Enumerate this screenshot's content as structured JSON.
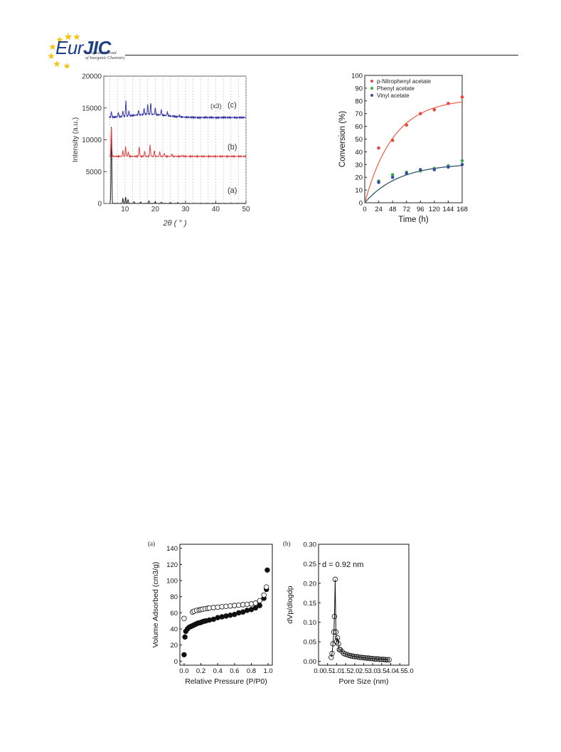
{
  "header": {
    "logo_text_eur": "Eur",
    "logo_text_jic": "JIC",
    "logo_sub1": "European Journal",
    "logo_sub2": "of Inorganic Chemistry"
  },
  "chart_data": [
    {
      "type": "line",
      "panel": "xrd",
      "xlabel": "2θ ( ° )",
      "ylabel": "Intensity (a.u.)",
      "xlim": [
        3,
        50
      ],
      "ylim": [
        0,
        20000
      ],
      "xticks": [
        "10",
        "20",
        "30",
        "40",
        "50"
      ],
      "yticks": [
        "0",
        "5000",
        "10000",
        "15000",
        "20000"
      ],
      "series": [
        {
          "name": "(a)",
          "offset": 0,
          "peaks": [
            [
              5.5,
              12000
            ],
            [
              9.3,
              800
            ],
            [
              10.2,
              1000
            ],
            [
              11.0,
              600
            ],
            [
              13.0,
              300
            ],
            [
              15.2,
              250
            ],
            [
              17.9,
              400
            ],
            [
              20.0,
              250
            ],
            [
              22.0,
              200
            ],
            [
              25.0,
              150
            ],
            [
              27.5,
              120
            ]
          ],
          "color": "#222222"
        },
        {
          "name": "(b)",
          "offset": 7400,
          "peaks": [
            [
              5.5,
              4500
            ],
            [
              9.3,
              900
            ],
            [
              10.2,
              1500
            ],
            [
              11.1,
              700
            ],
            [
              14.7,
              1500
            ],
            [
              16.5,
              800
            ],
            [
              18.3,
              1800
            ],
            [
              19.7,
              900
            ],
            [
              21.5,
              700
            ],
            [
              23.0,
              500
            ],
            [
              25.5,
              300
            ],
            [
              29.0,
              200
            ]
          ],
          "color": "#e04040"
        },
        {
          "name": "(c)",
          "annotation": "(x3)",
          "offset": 13500,
          "peaks": [
            [
              5.5,
              900
            ],
            [
              7.8,
              700
            ],
            [
              9.3,
              900
            ],
            [
              10.3,
              2300
            ],
            [
              11.3,
              800
            ],
            [
              14.5,
              700
            ],
            [
              16.3,
              1000
            ],
            [
              17.5,
              1600
            ],
            [
              18.5,
              1800
            ],
            [
              20.0,
              1100
            ],
            [
              22.0,
              800
            ],
            [
              24.0,
              600
            ],
            [
              28.0,
              300
            ]
          ],
          "color": "#3a3aa8"
        }
      ],
      "grid": "vertical dashed"
    },
    {
      "type": "scatter",
      "panel": "conversion",
      "xlabel": "Time (h)",
      "ylabel": "Conversion (%)",
      "xlim": [
        0,
        168
      ],
      "ylim": [
        0,
        100
      ],
      "xticks": [
        "0",
        "24",
        "48",
        "72",
        "96",
        "120",
        "144",
        "168"
      ],
      "yticks": [
        "0",
        "10",
        "20",
        "30",
        "40",
        "50",
        "60",
        "70",
        "80",
        "90",
        "100"
      ],
      "legend": "top-left",
      "series": [
        {
          "name": "p-Nitrophenyl acetate",
          "color": "#e8473c",
          "x": [
            0,
            24,
            48,
            72,
            96,
            120,
            144,
            168
          ],
          "y": [
            0,
            43,
            49,
            61,
            70,
            73,
            78,
            83
          ],
          "fit_max": 82,
          "fit_k": 0.02
        },
        {
          "name": "Phenyl acetate",
          "color": "#3aa84a",
          "x": [
            0,
            24,
            48,
            72,
            96,
            120,
            144,
            168
          ],
          "y": [
            0,
            17,
            22,
            24,
            25,
            27,
            29,
            33
          ],
          "fit_max": 31,
          "fit_k": 0.017
        },
        {
          "name": "Vinyl acetate",
          "color": "#3a4aa8",
          "x": [
            0,
            24,
            48,
            72,
            96,
            120,
            144,
            168
          ],
          "y": [
            0,
            16,
            20,
            23,
            26,
            26,
            28,
            30
          ],
          "fit_max": 31,
          "fit_k": 0.017
        }
      ],
      "fit_color_1": "#ef6a4c",
      "fit_color_2": "#2c5a68"
    },
    {
      "type": "scatter",
      "panel": "isotherm",
      "panel_label": "(a)",
      "xlabel": "Relative Pressure (P/P0)",
      "ylabel": "Volume Adsorbed (cm3/g)",
      "xlim": [
        -0.05,
        1.05
      ],
      "ylim": [
        -5,
        145
      ],
      "xticks": [
        "0.0",
        "0.2",
        "0.4",
        "0.6",
        "0.8",
        "1.0"
      ],
      "yticks": [
        "0",
        "20",
        "40",
        "60",
        "80",
        "100",
        "120",
        "140"
      ],
      "series": [
        {
          "name": "adsorption",
          "filled": true,
          "x": [
            0.0,
            0.01,
            0.02,
            0.04,
            0.06,
            0.08,
            0.1,
            0.12,
            0.14,
            0.16,
            0.18,
            0.2,
            0.22,
            0.24,
            0.26,
            0.3,
            0.35,
            0.4,
            0.45,
            0.5,
            0.55,
            0.6,
            0.65,
            0.7,
            0.75,
            0.8,
            0.85,
            0.9,
            0.95,
            0.98,
            0.99
          ],
          "y": [
            8,
            30,
            37,
            40,
            42,
            43,
            44,
            45,
            46,
            47,
            47.5,
            48,
            49,
            49.5,
            50,
            51,
            52,
            54,
            55,
            56,
            57,
            58,
            60,
            61,
            63,
            64,
            66,
            69,
            78,
            89,
            113
          ]
        },
        {
          "name": "desorption",
          "filled": false,
          "x": [
            0.0,
            0.1,
            0.12,
            0.15,
            0.18,
            0.2,
            0.22,
            0.25,
            0.28,
            0.3,
            0.35,
            0.4,
            0.45,
            0.5,
            0.55,
            0.6,
            0.65,
            0.7,
            0.75,
            0.8,
            0.85,
            0.9,
            0.95,
            0.98
          ],
          "y": [
            53,
            61,
            62,
            63,
            63.5,
            64,
            64.5,
            65,
            65.5,
            66,
            66.5,
            67,
            67.5,
            68,
            68.5,
            69,
            69.5,
            70,
            70.5,
            71,
            72,
            75,
            82,
            92
          ]
        }
      ]
    },
    {
      "type": "line",
      "panel": "psd",
      "panel_label": "(b)",
      "annotation": "d = 0.92 nm",
      "xlabel": "Pore Size (nm)",
      "ylabel": "dVp/dlogdp",
      "xlim": [
        0,
        5.0
      ],
      "ylim": [
        -0.01,
        0.3
      ],
      "xticks": [
        "0.0",
        "0.5",
        "1.0",
        "1.5",
        "2.0",
        "2.5",
        "3.0",
        "3.5",
        "4.0",
        "4.5",
        "5.0"
      ],
      "yticks": [
        "0.00",
        "0.05",
        "0.10",
        "0.15",
        "0.20",
        "0.25",
        "0.30"
      ],
      "x": [
        0.7,
        0.75,
        0.8,
        0.85,
        0.88,
        0.92,
        0.96,
        1.0,
        1.05,
        1.1,
        1.15,
        1.2,
        1.3,
        1.4,
        1.5,
        1.6,
        1.7,
        1.8,
        1.9,
        2.0,
        2.1,
        2.2,
        2.3,
        2.4,
        2.5,
        2.6,
        2.7,
        2.8,
        2.9,
        3.0,
        3.1,
        3.2,
        3.3,
        3.4,
        3.5,
        3.6,
        3.7,
        3.8,
        3.9
      ],
      "y": [
        0.01,
        0.02,
        0.045,
        0.075,
        0.115,
        0.21,
        0.075,
        0.05,
        0.06,
        0.045,
        0.03,
        0.03,
        0.025,
        0.02,
        0.018,
        0.017,
        0.015,
        0.014,
        0.013,
        0.012,
        0.012,
        0.011,
        0.01,
        0.01,
        0.009,
        0.009,
        0.008,
        0.008,
        0.007,
        0.007,
        0.006,
        0.006,
        0.006,
        0.005,
        0.005,
        0.005,
        0.004,
        0.004,
        0.004
      ]
    }
  ]
}
